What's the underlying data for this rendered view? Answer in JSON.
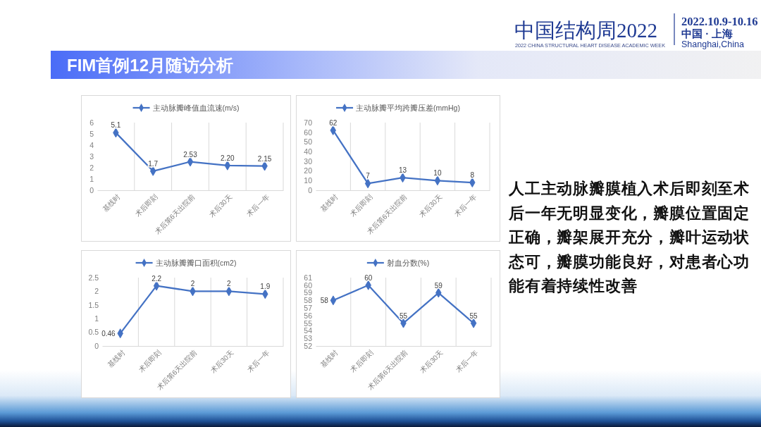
{
  "chart_data": [
    {
      "type": "other",
      "title": "FIM首例12月随访分析",
      "annotations": [
        "中国结构周2022",
        "2022 CHINA STRUCTURAL HEART DISEASE ACADEMIC WEEK",
        "2022.10.9-10.16",
        "中国 · 上海",
        "Shanghai,China",
        "人工主动脉瓣膜植入术后即刻至术后一年无明显变化，瓣膜位置固定正确，瓣架展开充分，瓣叶运动状态可，瓣膜功能良好，对患者心功能有着持续性改善"
      ]
    },
    {
      "type": "line",
      "categories": [
        "基线时",
        "术后即刻",
        "术后第6天出院前",
        "术后30天",
        "术后一年"
      ],
      "series": [
        {
          "name": "主动脉瓣峰值血流速(m/s)",
          "color": "#4472c4",
          "values": [
            5.1,
            1.7,
            2.53,
            2.2,
            2.15
          ],
          "value_labels": [
            "5.1",
            "1.7",
            "2.53",
            "2.20",
            "2.15"
          ]
        }
      ],
      "ylim": [
        0,
        6
      ],
      "yticks": [
        0,
        1,
        2,
        3,
        4,
        5,
        6
      ],
      "grid": "x",
      "legend": "top",
      "marker": "diamond"
    },
    {
      "type": "line",
      "categories": [
        "基线时",
        "术后即刻",
        "术后第6天出院前",
        "术后30天",
        "术后一年"
      ],
      "series": [
        {
          "name": "主动脉瓣平均跨瓣压差(mmHg)",
          "color": "#4472c4",
          "values": [
            62,
            7,
            13,
            10,
            8
          ]
        }
      ],
      "ylim": [
        0,
        70
      ],
      "yticks": [
        0,
        10,
        20,
        30,
        40,
        50,
        60,
        70
      ],
      "grid": "x",
      "legend": "top",
      "marker": "diamond",
      "data_labels": true
    },
    {
      "type": "line",
      "categories": [
        "基线时",
        "术后即刻",
        "术后第6天出院前",
        "术后30天",
        "术后一年"
      ],
      "series": [
        {
          "name": "主动脉瓣瓣口面积(cm2)",
          "color": "#4472c4",
          "values": [
            0.46,
            2.2,
            2,
            2,
            1.9
          ]
        }
      ],
      "ylim": [
        0,
        2.5
      ],
      "yticks": [
        0,
        0.5,
        1,
        1.5,
        2,
        2.5
      ],
      "grid": "x",
      "legend": "top",
      "marker": "diamond",
      "data_labels": true
    },
    {
      "type": "line",
      "categories": [
        "基线时",
        "术后即刻",
        "术后第6天出院前",
        "术后30天",
        "术后一年"
      ],
      "series": [
        {
          "name": "射血分数(%)",
          "color": "#4472c4",
          "values": [
            58,
            60,
            55,
            59,
            55
          ]
        }
      ],
      "ylim": [
        52,
        61
      ],
      "yticks": [
        52,
        53,
        54,
        55,
        56,
        57,
        58,
        59,
        60,
        61
      ],
      "grid": "x",
      "legend": "top",
      "marker": "diamond",
      "data_labels": true
    }
  ]
}
